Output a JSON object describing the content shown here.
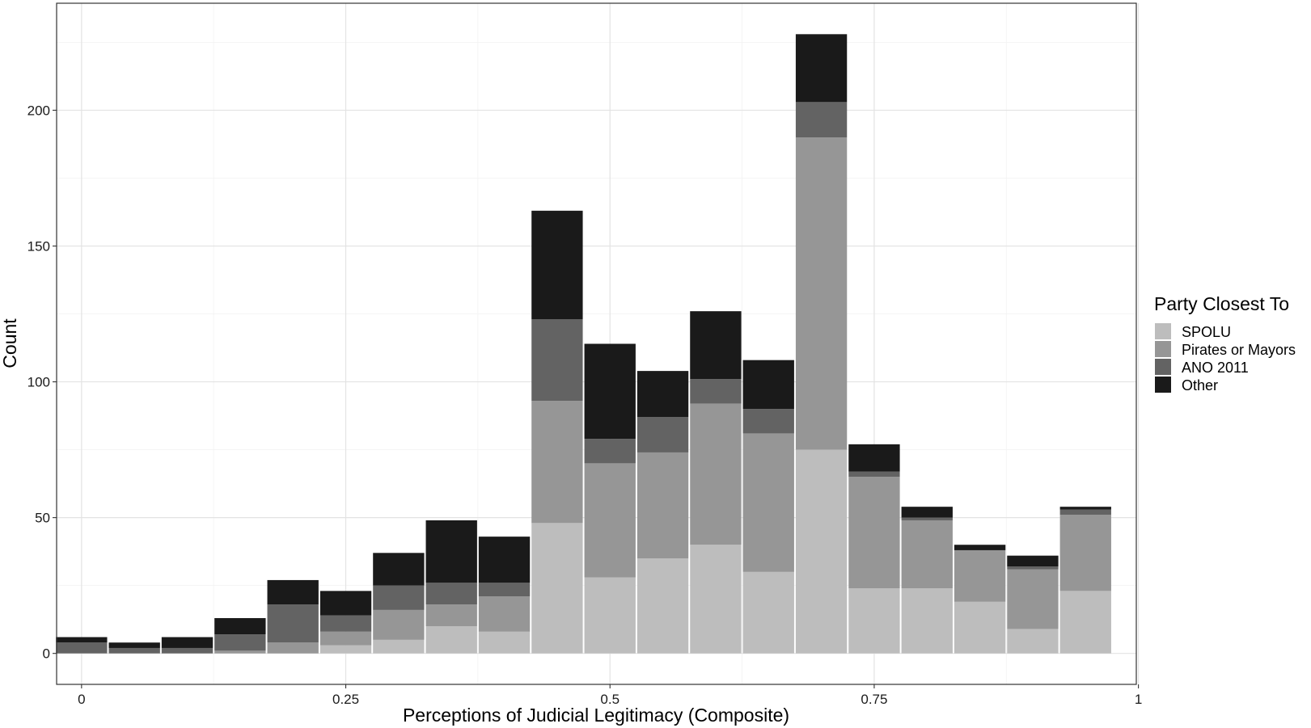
{
  "chart_data": {
    "type": "bar",
    "stacked": true,
    "title": "",
    "xlabel": "Perceptions of Judicial Legitimacy (Composite)",
    "ylabel": "Count",
    "xlim": [
      -0.0236,
      0.998
    ],
    "ylim": [
      -11.4,
      239.4
    ],
    "x_ticks": [
      0,
      0.25,
      0.5,
      0.75,
      1
    ],
    "x_tick_labels": [
      "0",
      "0.25",
      "0.5",
      "0.75",
      "1"
    ],
    "y_ticks": [
      0,
      50,
      100,
      150,
      200
    ],
    "y_tick_labels": [
      "0",
      "50",
      "100",
      "150",
      "200"
    ],
    "grid": true,
    "bin_width": 0.05,
    "x": [
      0,
      0.05,
      0.1,
      0.15,
      0.2,
      0.25,
      0.3,
      0.35,
      0.4,
      0.45,
      0.5,
      0.55,
      0.6,
      0.65,
      0.7,
      0.75,
      0.8,
      0.85,
      0.9,
      0.95
    ],
    "series": [
      {
        "name": "SPOLU",
        "color": "#bdbdbd",
        "values": [
          0,
          0,
          0,
          0,
          0,
          3,
          5,
          10,
          8,
          48,
          28,
          35,
          40,
          30,
          75,
          24,
          24,
          19,
          9,
          23
        ]
      },
      {
        "name": "Pirates or Mayors",
        "color": "#969696",
        "values": [
          0,
          0,
          0,
          1,
          4,
          5,
          11,
          8,
          13,
          45,
          42,
          39,
          52,
          51,
          115,
          41,
          25,
          19,
          22,
          28
        ]
      },
      {
        "name": "ANO 2011",
        "color": "#636363",
        "values": [
          4,
          2,
          2,
          6,
          14,
          6,
          9,
          8,
          5,
          30,
          9,
          13,
          9,
          9,
          13,
          2,
          1,
          0,
          1,
          2
        ]
      },
      {
        "name": "Other",
        "color": "#1a1a1a",
        "values": [
          2,
          2,
          4,
          6,
          9,
          9,
          12,
          23,
          17,
          40,
          35,
          17,
          25,
          18,
          25,
          10,
          4,
          2,
          4,
          1
        ]
      }
    ],
    "legend": {
      "title": "Party Closest To",
      "position": "right"
    }
  }
}
